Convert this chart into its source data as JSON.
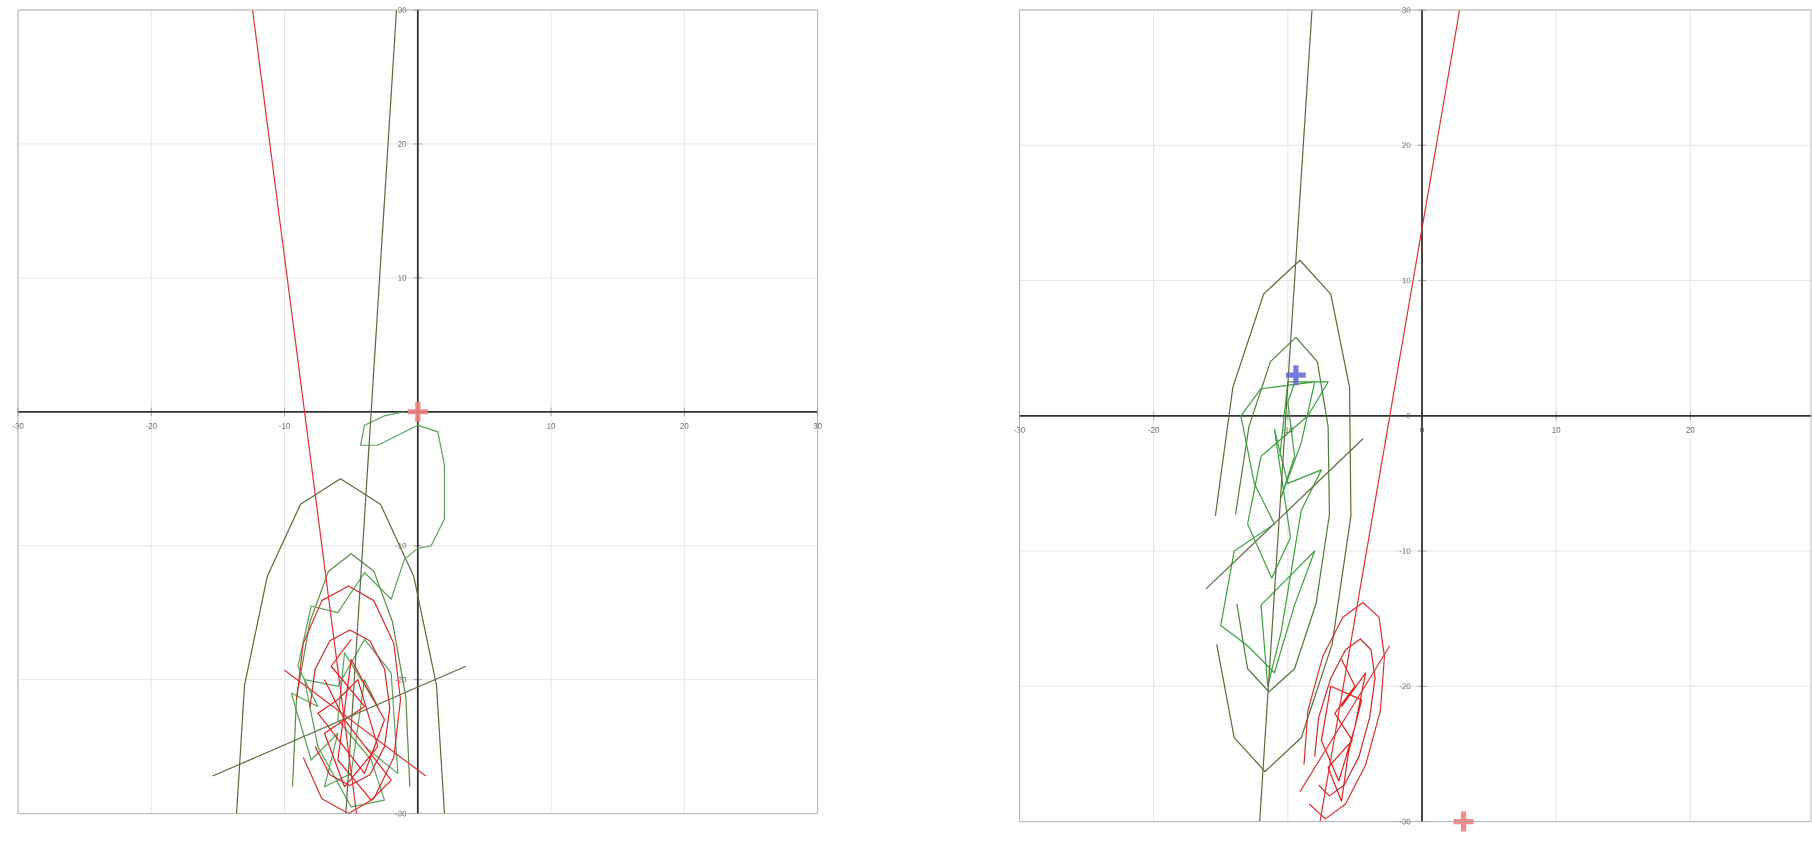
{
  "chart_data": [
    {
      "type": "line",
      "xlim": [
        -30,
        30
      ],
      "ylim": [
        -30,
        30
      ],
      "xticks": [
        -30,
        -20,
        -10,
        {
          "value": 0,
          "label": null
        },
        10,
        20,
        30
      ],
      "yticks": [
        -30,
        -20,
        -10,
        {
          "value": 0,
          "label": null
        },
        10,
        20,
        30
      ],
      "grid": true,
      "series": [
        {
          "color": "#5a6b3a",
          "x": [
            -13.6,
            -13.0,
            -11.3,
            -8.8,
            -5.8,
            -2.8,
            -0.3,
            1.4,
            2.0
          ],
          "values": [
            -30,
            -20.4,
            -12.3,
            -6.9,
            -5,
            -6.9,
            -12.3,
            -20.4,
            -30
          ]
        },
        {
          "color": "#5a8a3a",
          "x": [
            -9.4,
            -9.1,
            -8.1,
            -6.7,
            -5,
            -3.3,
            -1.9,
            -0.9,
            -0.6
          ],
          "values": [
            -28,
            -21.3,
            -15.7,
            -11.9,
            -10.6,
            -11.9,
            -15.7,
            -21.3,
            -28
          ]
        },
        {
          "color": "#5aa05a",
          "x": [
            -1,
            -2.5,
            -4,
            -4.3,
            -3,
            0,
            1.5,
            2,
            2,
            1,
            0,
            -1,
            -2,
            -4,
            -6,
            -8,
            -9,
            -7.5,
            -9.5,
            -8,
            -6,
            -7,
            -5,
            -4,
            -3,
            -5.5,
            -6,
            -3.5,
            -2.5,
            -5,
            -7.5,
            -8.5,
            -6,
            -4,
            -2,
            -1.5,
            -4
          ],
          "values": [
            0,
            -0.3,
            -1,
            -2.5,
            -2.5,
            -1,
            -1.5,
            -4,
            -8,
            -10,
            -10.2,
            -11,
            -14,
            -12,
            -15,
            -14.5,
            -19,
            -22,
            -21,
            -26,
            -24,
            -28,
            -27,
            -20,
            -22,
            -18,
            -23,
            -26,
            -29,
            -29.5,
            -25,
            -20,
            -20.5,
            -17,
            -19.5,
            -27,
            -25
          ]
        },
        {
          "color": "#e02020",
          "x": [
            -5,
            -6.5,
            -4,
            -7,
            -5.5,
            -3,
            -4.5,
            -6,
            -7.5,
            -4,
            -2.5,
            -5,
            -6,
            -3.5,
            -2,
            -5.5,
            -7
          ],
          "values": [
            -17,
            -19,
            -22,
            -24,
            -28,
            -25,
            -20,
            -21.5,
            -22.5,
            -27,
            -23,
            -18.5,
            -26,
            -29,
            -27.5,
            -23,
            -20
          ]
        },
        {
          "color": "#d83030",
          "x": [
            -9.1,
            -8.6,
            -7.2,
            -5.2,
            -3.3,
            -1.8,
            -1.3,
            -1.8,
            -3.3,
            -5.2,
            -7.2,
            -8.6
          ],
          "values": [
            -21.5,
            -17.3,
            -14.1,
            -13,
            -14.1,
            -17.3,
            -21.5,
            -25.8,
            -28.9,
            -30,
            -28.9,
            -25.8
          ]
        },
        {
          "color": "#c82828",
          "x": [
            -8.1,
            -7.7,
            -6.6,
            -5.1,
            -3.6,
            -2.5,
            -2.1,
            -2.5,
            -3.6,
            -5.1,
            -6.6,
            -7.7
          ],
          "values": [
            -22.1,
            -19.2,
            -17.1,
            -16.3,
            -17.1,
            -19.2,
            -22.1,
            -25,
            -27.1,
            -27.9,
            -27.1,
            -25
          ]
        },
        {
          "color": "#e03030",
          "x": [
            -12.4,
            -4.6
          ],
          "values": [
            30,
            -30
          ]
        },
        {
          "color": "#e03434",
          "x": [
            -10,
            0.6
          ],
          "values": [
            -19.3,
            -27.2
          ]
        },
        {
          "color": "#5a6b3b",
          "x": [
            -1.6,
            -5.4
          ],
          "values": [
            30,
            -30
          ]
        },
        {
          "color": "#5a6b3c",
          "x": [
            -15.4,
            3.6
          ],
          "values": [
            -27.2,
            -19
          ]
        },
        {
          "type": "scatter",
          "marker": "cross",
          "color": "#f08080",
          "x": [
            0
          ],
          "values": [
            0
          ]
        }
      ]
    },
    {
      "type": "line",
      "xlim": [
        -30,
        29
      ],
      "ylim": [
        -30,
        30
      ],
      "xticks": [
        -30,
        -20,
        -10,
        0,
        10,
        20
      ],
      "yticks": [
        -30,
        -20,
        -10,
        0,
        10,
        20,
        30
      ],
      "grid": true,
      "series": [
        {
          "color": "#5a6b3a",
          "x": [
            -15.4,
            -14.1,
            -11.8,
            -9.1,
            -6.8,
            -5.4,
            -5.3,
            -6.7,
            -9,
            -11.7,
            -14,
            -15.3
          ],
          "values": [
            -7.4,
            2.1,
            9,
            11.5,
            9,
            2.1,
            -7.4,
            -16.9,
            -23.8,
            -26.3,
            -23.8,
            -16.9
          ]
        },
        {
          "color": "#4f7a3a",
          "x": [
            -13.9,
            -12.9,
            -11.3,
            -9.4,
            -7.8,
            -7.0,
            -6.9,
            -7.9,
            -9.5,
            -11.4,
            -13,
            -13.8
          ],
          "values": [
            -7.3,
            -0.8,
            4,
            5.8,
            4,
            -0.8,
            -7.3,
            -13.9,
            -18.7,
            -20.4,
            -18.7,
            -13.9
          ]
        },
        {
          "color": "#3aa03a",
          "x": [
            -9.3,
            -10,
            -9.5,
            -10.5,
            -9,
            -8,
            -12,
            -13.5,
            -12.5,
            -11,
            -14,
            -15,
            -13,
            -11,
            -9.5,
            -8,
            -10,
            -12,
            -11.5,
            -10.5,
            -9,
            -7.5,
            -10,
            -11,
            -9.8,
            -11.2,
            -13,
            -12,
            -8.5,
            -7,
            -10,
            -10.6
          ],
          "values": [
            3,
            1,
            -3,
            -6,
            -2,
            2.5,
            2,
            0,
            -5,
            -8,
            -10,
            -15.5,
            -17,
            -19,
            -14,
            -10,
            -12,
            -14,
            -20,
            -16,
            -7,
            -4,
            -5,
            -1,
            -9,
            -12,
            -8,
            -3,
            0,
            2.5,
            2.5,
            -3
          ]
        },
        {
          "color": "#e02020",
          "x": [
            -6,
            -5,
            -6.5,
            -5.2,
            -7,
            -6,
            -5.5,
            -4.5,
            -6.8,
            -7.5,
            -6.2,
            -5,
            -4.2,
            -6
          ],
          "values": [
            -18,
            -20,
            -22,
            -24,
            -26,
            -28.5,
            -25,
            -21,
            -20,
            -24,
            -27,
            -23,
            -19,
            -21.5
          ]
        },
        {
          "color": "#d83030",
          "x": [
            -8.8,
            -8.5,
            -7.4,
            -5.9,
            -4.4,
            -3.2,
            -2.8,
            -3.1,
            -4.2,
            -5.7,
            -7.2,
            -8.4
          ],
          "values": [
            -25.8,
            -21.8,
            -17.8,
            -14.9,
            -13.8,
            -14.9,
            -17.8,
            -21.8,
            -25.8,
            -28.7,
            -29.8,
            -28.7
          ]
        },
        {
          "color": "#c82828",
          "x": [
            -8,
            -7.7,
            -6.8,
            -5.7,
            -4.6,
            -3.8,
            -3.5,
            -3.9,
            -4.7,
            -5.8,
            -6.9,
            -7.7
          ],
          "values": [
            -25.2,
            -22.3,
            -19.4,
            -17.3,
            -16.5,
            -17.3,
            -19.4,
            -22.3,
            -25.2,
            -27.3,
            -28.1,
            -27.3
          ]
        },
        {
          "color": "#5a6b3c",
          "x": [
            -8.2,
            -12.1
          ],
          "values": [
            30,
            -30
          ]
        },
        {
          "color": "#5a6b3d",
          "x": [
            -16.1,
            -4.4
          ],
          "values": [
            -12.8,
            -1.7
          ]
        },
        {
          "color": "#e03030",
          "x": [
            2.8,
            -7.6
          ],
          "values": [
            30,
            -30
          ]
        },
        {
          "color": "#e03434",
          "x": [
            -9.1,
            -2.4
          ],
          "values": [
            -27.8,
            -17
          ]
        },
        {
          "type": "scatter",
          "marker": "cross",
          "color": "#6a6adc",
          "x": [
            -9.4
          ],
          "values": [
            3.0
          ]
        },
        {
          "type": "scatter",
          "marker": "cross",
          "color": "#f08080",
          "x": [
            3.1
          ],
          "values": [
            -30
          ]
        }
      ]
    }
  ]
}
